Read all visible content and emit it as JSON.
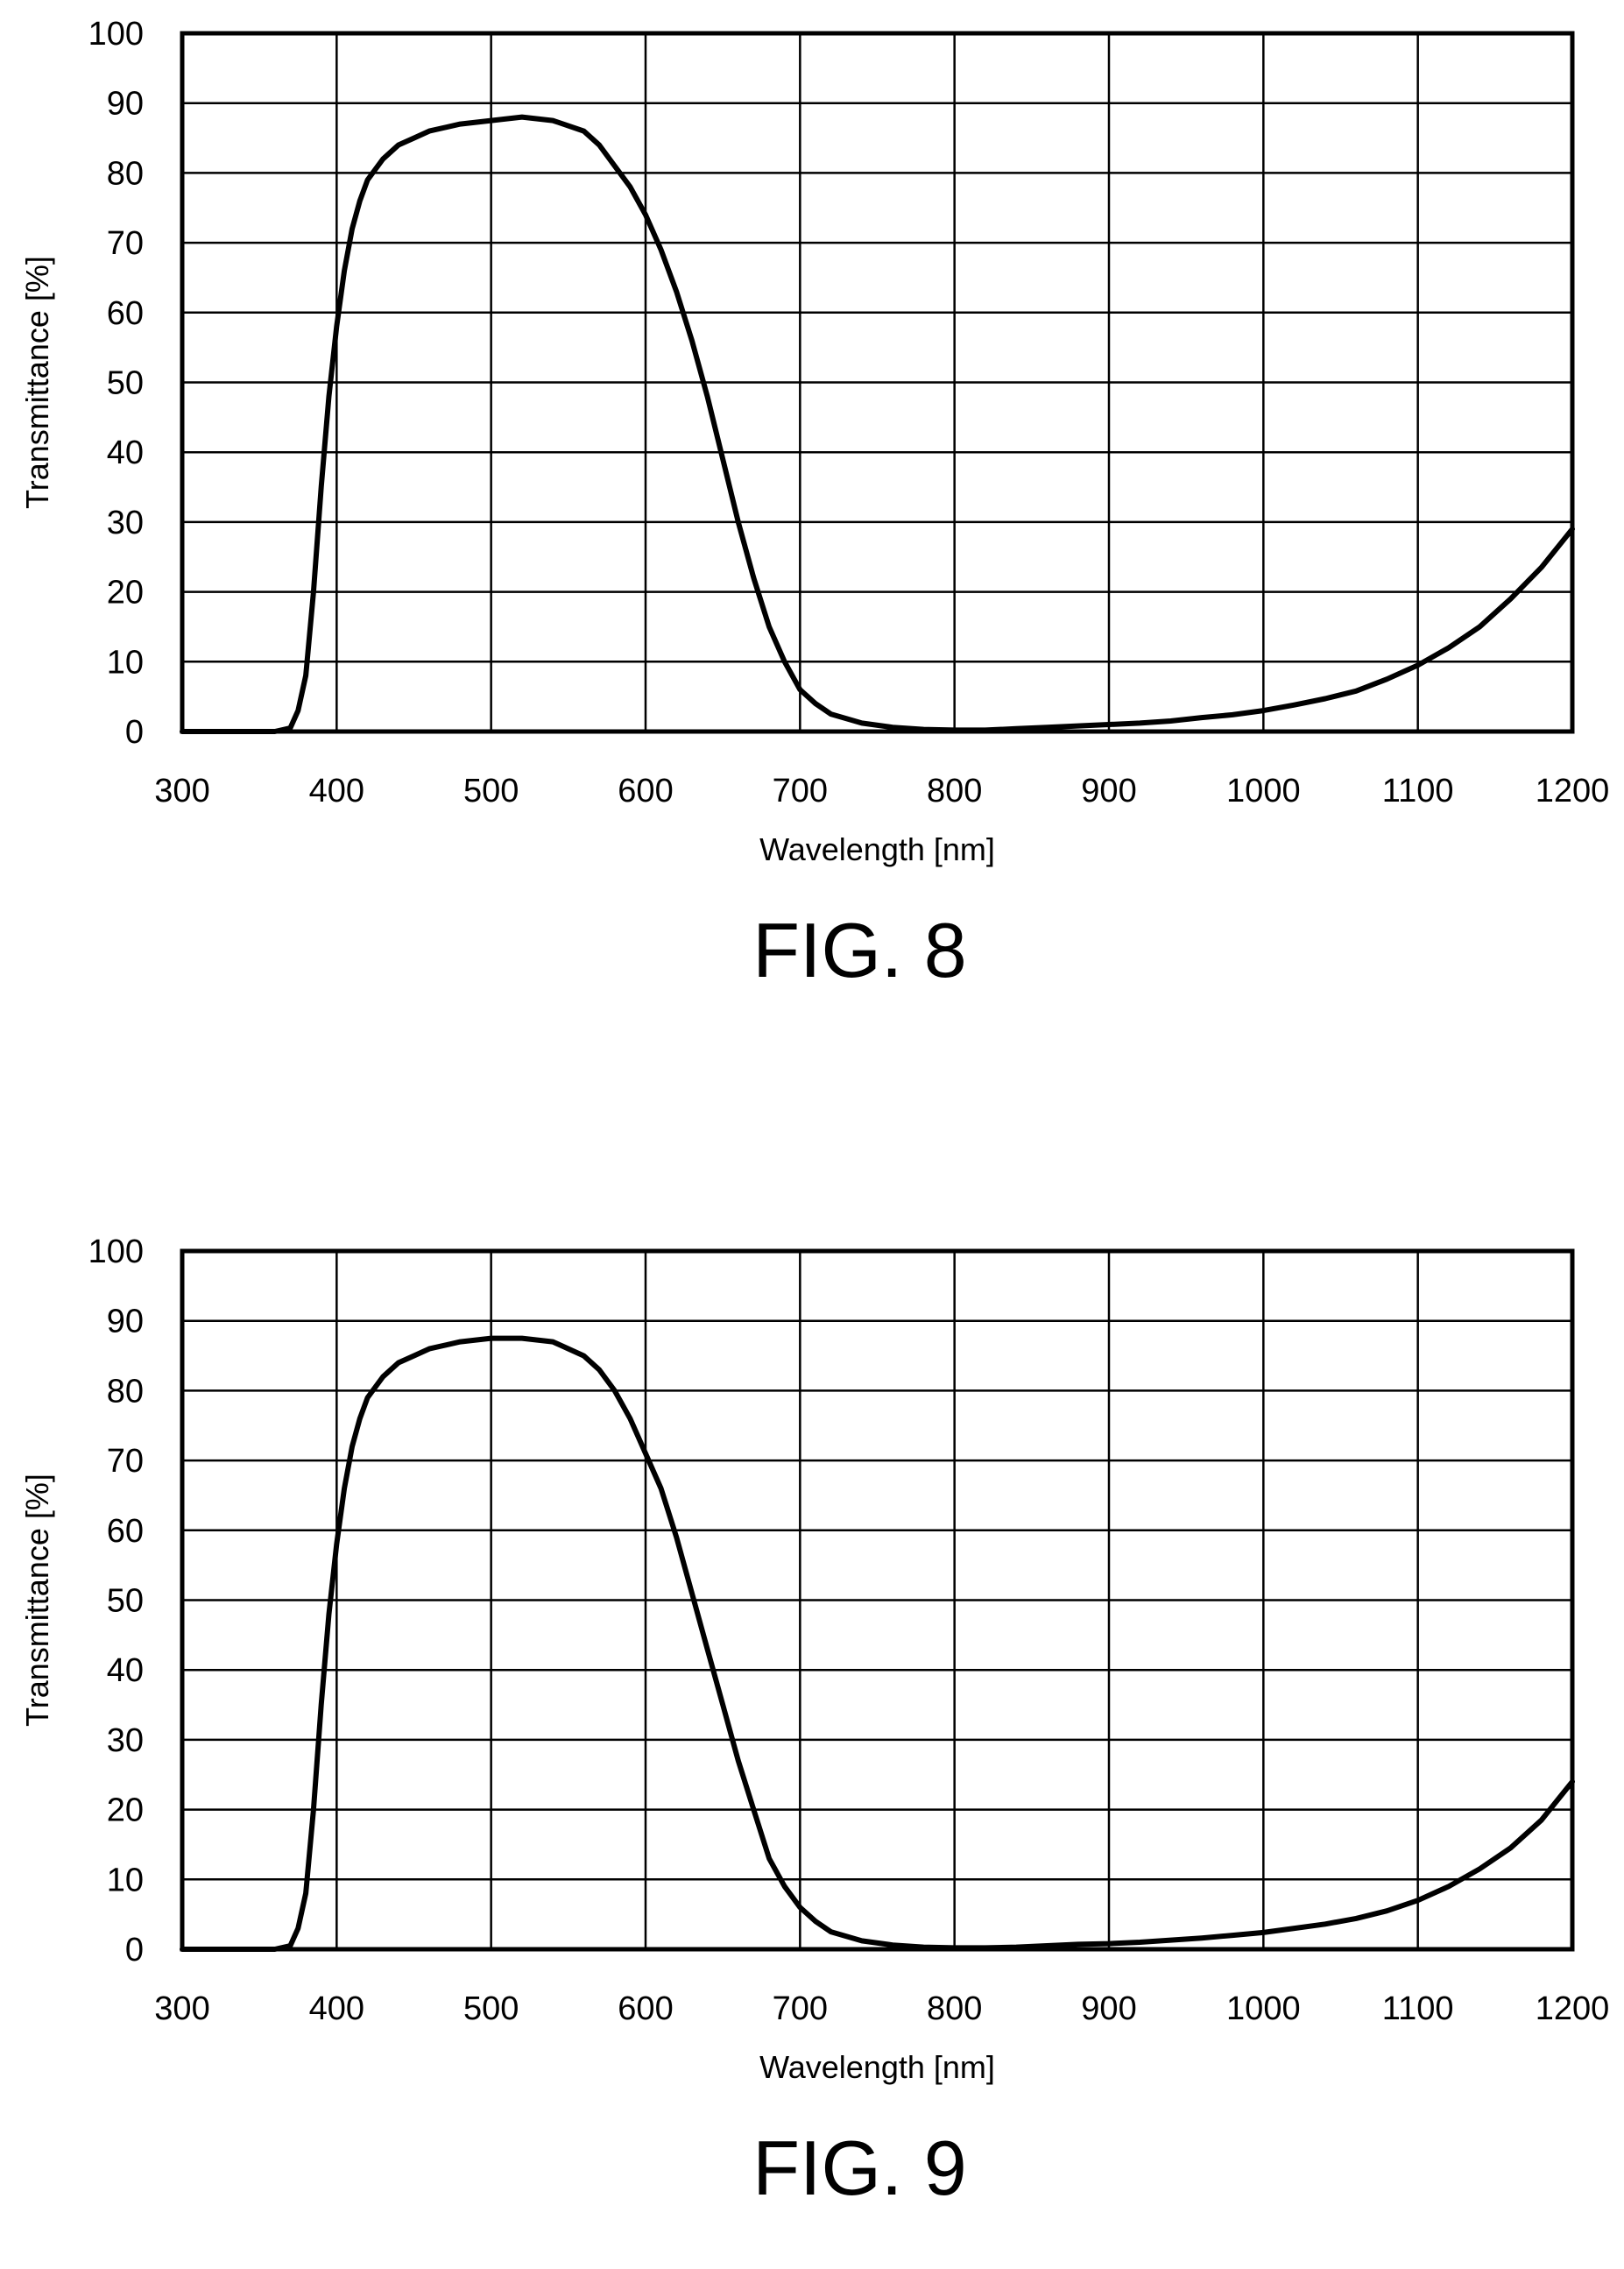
{
  "chart_data": [
    {
      "type": "line",
      "caption": "FIG. 8",
      "xlabel": "Wavelength [nm]",
      "ylabel": "Transmittance [%]",
      "xlim": [
        300,
        1200
      ],
      "ylim": [
        0,
        100
      ],
      "xticks": [
        300,
        400,
        500,
        600,
        700,
        800,
        900,
        1000,
        1100,
        1200
      ],
      "yticks": [
        0,
        10,
        20,
        30,
        40,
        50,
        60,
        70,
        80,
        90,
        100
      ],
      "grid": true,
      "series": [
        {
          "x": [
            300,
            360,
            370,
            375,
            380,
            385,
            390,
            395,
            400,
            405,
            410,
            415,
            420,
            430,
            440,
            450,
            460,
            480,
            500,
            520,
            540,
            560,
            570,
            580,
            590,
            600,
            610,
            620,
            630,
            640,
            650,
            660,
            670,
            680,
            690,
            700,
            710,
            720,
            740,
            760,
            780,
            800,
            820,
            840,
            860,
            880,
            900,
            920,
            940,
            960,
            980,
            1000,
            1020,
            1040,
            1060,
            1080,
            1100,
            1120,
            1140,
            1160,
            1180,
            1200
          ],
          "y": [
            0,
            0,
            0.5,
            3,
            8,
            20,
            35,
            48,
            58,
            66,
            72,
            76,
            79,
            82,
            84,
            85,
            86,
            87,
            87.5,
            88,
            87.5,
            86,
            84,
            81,
            78,
            74,
            69,
            63,
            56,
            48,
            39,
            30,
            22,
            15,
            10,
            6,
            4,
            2.5,
            1.2,
            0.6,
            0.3,
            0.2,
            0.2,
            0.4,
            0.6,
            0.8,
            1,
            1.2,
            1.5,
            2,
            2.4,
            3,
            3.8,
            4.7,
            5.8,
            7.5,
            9.5,
            12,
            15,
            19,
            23.5,
            29
          ]
        }
      ]
    },
    {
      "type": "line",
      "caption": "FIG. 9",
      "xlabel": "Wavelength [nm]",
      "ylabel": "Transmittance [%]",
      "xlim": [
        300,
        1200
      ],
      "ylim": [
        0,
        100
      ],
      "xticks": [
        300,
        400,
        500,
        600,
        700,
        800,
        900,
        1000,
        1100,
        1200
      ],
      "yticks": [
        0,
        10,
        20,
        30,
        40,
        50,
        60,
        70,
        80,
        90,
        100
      ],
      "grid": true,
      "series": [
        {
          "x": [
            300,
            360,
            370,
            375,
            380,
            385,
            390,
            395,
            400,
            405,
            410,
            415,
            420,
            430,
            440,
            450,
            460,
            480,
            500,
            520,
            540,
            560,
            570,
            580,
            590,
            600,
            610,
            620,
            630,
            640,
            650,
            660,
            670,
            680,
            690,
            700,
            710,
            720,
            740,
            760,
            780,
            800,
            820,
            840,
            860,
            880,
            900,
            920,
            940,
            960,
            980,
            1000,
            1020,
            1040,
            1060,
            1080,
            1100,
            1120,
            1140,
            1160,
            1180,
            1200
          ],
          "y": [
            0,
            0,
            0.5,
            3,
            8,
            20,
            35,
            48,
            58,
            66,
            72,
            76,
            79,
            82,
            84,
            85,
            86,
            87,
            87.5,
            87.5,
            87,
            85,
            83,
            80,
            76,
            71,
            66,
            59,
            51,
            43,
            35,
            27,
            20,
            13,
            9,
            6,
            4,
            2.5,
            1.2,
            0.6,
            0.3,
            0.2,
            0.2,
            0.3,
            0.5,
            0.7,
            0.8,
            1,
            1.3,
            1.6,
            2,
            2.4,
            3,
            3.6,
            4.4,
            5.5,
            7,
            9,
            11.5,
            14.5,
            18.5,
            24
          ]
        }
      ]
    }
  ]
}
